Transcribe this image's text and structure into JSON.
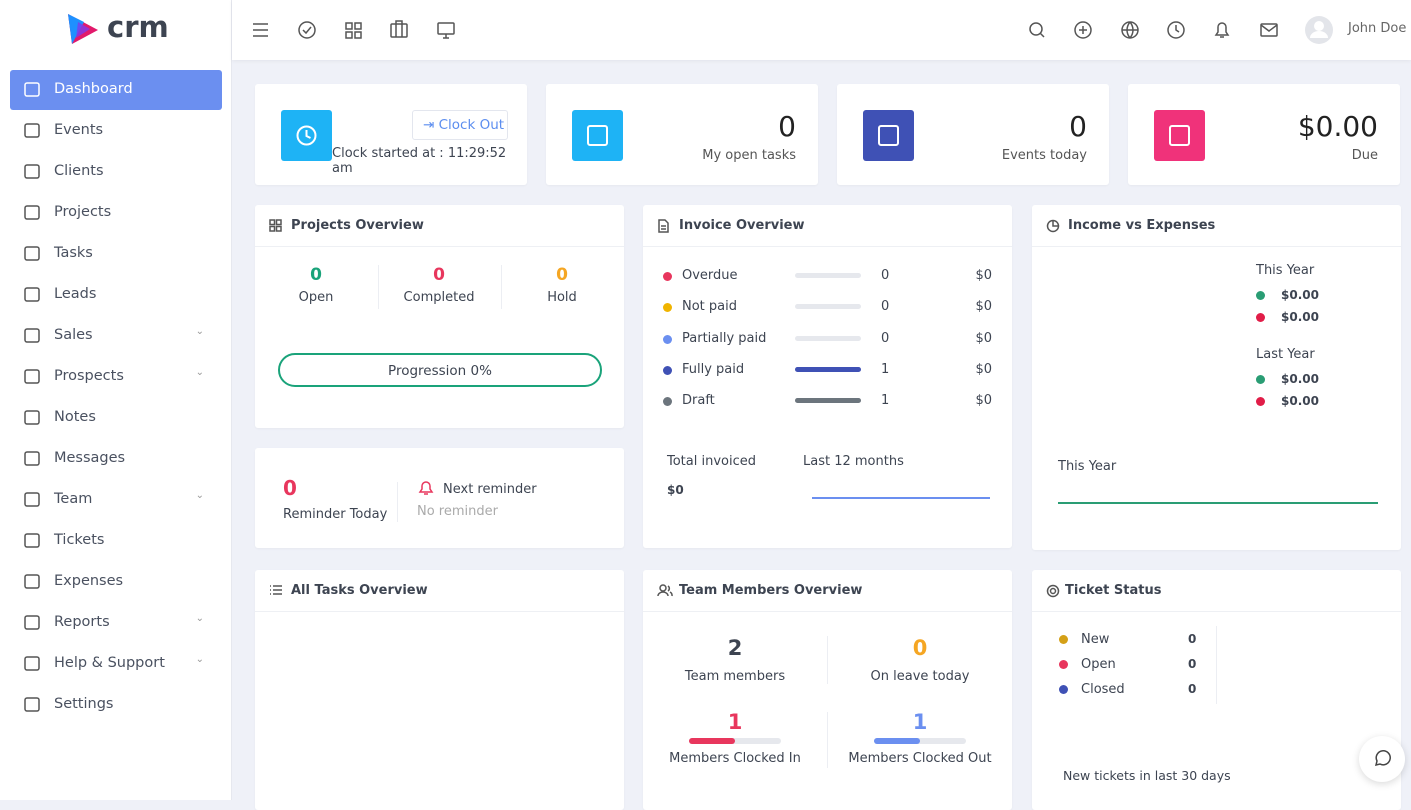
{
  "brand": "crm",
  "user": "John Doe",
  "sidebar": [
    {
      "label": "Dashboard",
      "active": true
    },
    {
      "label": "Events"
    },
    {
      "label": "Clients"
    },
    {
      "label": "Projects"
    },
    {
      "label": "Tasks"
    },
    {
      "label": "Leads"
    },
    {
      "label": "Sales",
      "submenu": true
    },
    {
      "label": "Prospects",
      "submenu": true
    },
    {
      "label": "Notes"
    },
    {
      "label": "Messages"
    },
    {
      "label": "Team",
      "submenu": true
    },
    {
      "label": "Tickets"
    },
    {
      "label": "Expenses"
    },
    {
      "label": "Reports",
      "submenu": true
    },
    {
      "label": "Help & Support",
      "submenu": true
    },
    {
      "label": "Settings"
    }
  ],
  "clock": {
    "button": "Clock Out",
    "text": "Clock started at : 11:29:52 am",
    "color": "#1eb3f5"
  },
  "stats": [
    {
      "value": 0,
      "label": "My open tasks",
      "color": "#1eb3f5"
    },
    {
      "value": 0,
      "label": "Events today",
      "color": "#3f51b5"
    },
    {
      "value": "$0.00",
      "label": "Due",
      "color": "#f0327a"
    }
  ],
  "projects_overview": {
    "title": "Projects Overview",
    "items": [
      {
        "value": 0,
        "label": "Open",
        "color": "#1aa37a"
      },
      {
        "value": 0,
        "label": "Completed",
        "color": "#e8365d"
      },
      {
        "value": 0,
        "label": "Hold",
        "color": "#f5a623"
      }
    ],
    "progress": "Progression 0%"
  },
  "reminder": {
    "value": 0,
    "label": "Reminder Today",
    "next": "Next reminder",
    "none": "No reminder"
  },
  "invoice": {
    "title": "Invoice Overview",
    "rows": [
      {
        "label": "Overdue",
        "color": "#e8365d",
        "count": 0,
        "amount": "$0"
      },
      {
        "label": "Not paid",
        "color": "#f0b400",
        "count": 0,
        "amount": "$0"
      },
      {
        "label": "Partially paid",
        "color": "#6b8ff0",
        "count": 0,
        "amount": "$0"
      },
      {
        "label": "Fully paid",
        "color": "#3f51b5",
        "count": 1,
        "amount": "$0"
      },
      {
        "label": "Draft",
        "color": "#6c757d",
        "count": 1,
        "amount": "$0"
      }
    ],
    "total_label": "Total invoiced",
    "total": "$0",
    "period": "Last 12 months"
  },
  "income": {
    "title": "Income vs Expenses",
    "groups": [
      {
        "label": "This Year",
        "values": [
          "$0.00",
          "$0.00"
        ]
      },
      {
        "label": "Last Year",
        "values": [
          "$0.00",
          "$0.00"
        ]
      }
    ],
    "colors": [
      "#2a9d74",
      "#e11d48"
    ],
    "chart_label": "This Year"
  },
  "tasks_overview": {
    "title": "All Tasks Overview"
  },
  "team": {
    "title": "Team Members Overview",
    "items": [
      {
        "value": 2,
        "label": "Team members",
        "color": "#3d4451"
      },
      {
        "value": 0,
        "label": "On leave today",
        "color": "#f5a623"
      },
      {
        "value": 1,
        "label": "Members Clocked In",
        "color": "#e8365d"
      },
      {
        "value": 1,
        "label": "Members Clocked Out",
        "color": "#6b8ff0"
      }
    ]
  },
  "tickets": {
    "title": "Ticket Status",
    "rows": [
      {
        "label": "New",
        "count": 0,
        "color": "#d4a017"
      },
      {
        "label": "Open",
        "count": 0,
        "color": "#e8365d"
      },
      {
        "label": "Closed",
        "count": 0,
        "color": "#3f51b5"
      }
    ],
    "footer": "New tickets in last 30 days"
  }
}
